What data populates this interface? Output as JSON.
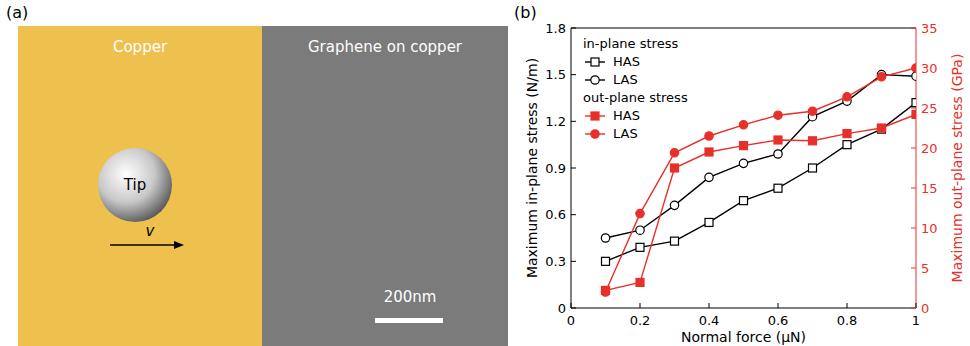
{
  "panel_a": {
    "label": "(a)",
    "regions": [
      "Copper",
      "Graphene on copper"
    ],
    "tip": "Tip",
    "velocity": "v",
    "scale_bar": "200nm"
  },
  "chart_data": {
    "type": "line",
    "panel_label": "(b)",
    "x_label": "Normal force (μN)",
    "y_label": "Maximum in-plane stress (N/m)",
    "y2_label": "Maximum out-plane stress (GPa)",
    "x": [
      0.1,
      0.2,
      0.3,
      0.4,
      0.5,
      0.6,
      0.7,
      0.8,
      0.9,
      1
    ],
    "xlim": [
      0,
      1
    ],
    "xticks": [
      0,
      0.2,
      0.4,
      0.6,
      0.8,
      1
    ],
    "ylim": [
      0,
      1.8
    ],
    "yticks": [
      0,
      0.3,
      0.6,
      0.9,
      1.2,
      1.5,
      1.8
    ],
    "y2lim": [
      0,
      35
    ],
    "y2ticks": [
      0,
      5,
      10,
      15,
      20,
      25,
      30,
      35
    ],
    "grid": false,
    "legend": "upper left",
    "legend_titles": [
      "in-plane stress",
      "out-plane stress"
    ],
    "series": [
      {
        "name": "HAS",
        "color": "#000000",
        "marker": "square-open",
        "values": [
          0.3,
          0.39,
          0.43,
          0.55,
          0.69,
          0.77,
          0.9,
          1.05,
          1.15,
          1.32
        ]
      },
      {
        "name": "LAS",
        "color": "#000000",
        "marker": "circle-open",
        "values": [
          0.45,
          0.5,
          0.66,
          0.84,
          0.93,
          0.99,
          1.23,
          1.33,
          1.5,
          1.49
        ]
      },
      {
        "name": "HAS",
        "color": "#e8302a",
        "marker": "square",
        "axis": "y2",
        "values": [
          2.2,
          3.2,
          17.5,
          19.5,
          20.3,
          21.0,
          20.9,
          21.8,
          22.5,
          24.2
        ]
      },
      {
        "name": "LAS",
        "color": "#e8302a",
        "marker": "circle",
        "axis": "y2",
        "values": [
          2.0,
          11.8,
          19.4,
          21.5,
          22.9,
          24.1,
          24.6,
          26.4,
          28.9,
          30.0
        ]
      }
    ]
  }
}
